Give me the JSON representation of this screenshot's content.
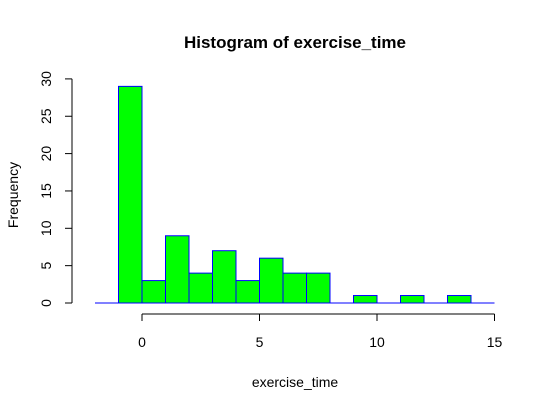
{
  "chart_data": {
    "type": "bar",
    "title": "Histogram of exercise_time",
    "xlabel": "exercise_time",
    "ylabel": "Frequency",
    "bins": [
      {
        "start": -1,
        "end": 0,
        "count": 29
      },
      {
        "start": 0,
        "end": 1,
        "count": 3
      },
      {
        "start": 1,
        "end": 2,
        "count": 9
      },
      {
        "start": 2,
        "end": 3,
        "count": 4
      },
      {
        "start": 3,
        "end": 4,
        "count": 7
      },
      {
        "start": 4,
        "end": 5,
        "count": 3
      },
      {
        "start": 5,
        "end": 6,
        "count": 6
      },
      {
        "start": 6,
        "end": 7,
        "count": 4
      },
      {
        "start": 7,
        "end": 8,
        "count": 4
      },
      {
        "start": 8,
        "end": 9,
        "count": 0
      },
      {
        "start": 9,
        "end": 10,
        "count": 1
      },
      {
        "start": 10,
        "end": 11,
        "count": 0
      },
      {
        "start": 11,
        "end": 12,
        "count": 1
      },
      {
        "start": 12,
        "end": 13,
        "count": 0
      },
      {
        "start": 13,
        "end": 14,
        "count": 1
      }
    ],
    "xlim": [
      -2,
      15
    ],
    "ylim": [
      0,
      30
    ],
    "xticks": [
      "0",
      "5",
      "10",
      "15"
    ],
    "yticks": [
      "0",
      "5",
      "10",
      "15",
      "20",
      "25",
      "30"
    ],
    "bar_color": "#00ff00",
    "bar_border_color": "#0000ff",
    "baseline_color": "#0000ff",
    "grid": false
  }
}
